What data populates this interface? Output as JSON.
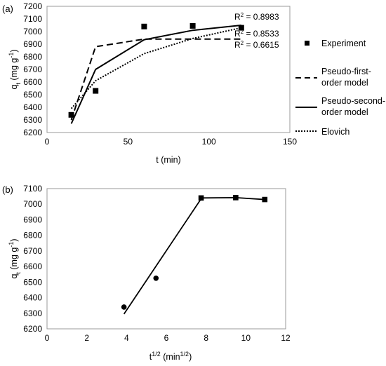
{
  "chart_data": [
    {
      "panel_label": "(a)",
      "type": "scatter",
      "xlabel": "t (min)",
      "ylabel": "q",
      "ylabel_sub": "t",
      "ylabel_unit_pre": " (mg g",
      "ylabel_unit_sup": "-1",
      "ylabel_unit_post": ")",
      "xlim": [
        0,
        150
      ],
      "ylim": [
        6200,
        7200
      ],
      "xticks": [
        0,
        50,
        100,
        150
      ],
      "yticks": [
        6200,
        6300,
        6400,
        6500,
        6600,
        6700,
        6800,
        6900,
        7000,
        7100,
        7200
      ],
      "grid": false,
      "legend": "right",
      "series": [
        {
          "name": "Experiment",
          "style": "square-markers",
          "x": [
            15,
            30,
            60,
            90,
            120
          ],
          "y": [
            6340,
            6530,
            7040,
            7045,
            7030
          ]
        },
        {
          "name": "Pseudo-first-order model",
          "style": "dashed",
          "x": [
            15,
            30,
            60,
            90,
            120
          ],
          "y": [
            6300,
            6880,
            6940,
            6940,
            6940
          ]
        },
        {
          "name": "Pseudo-second-order model",
          "style": "solid",
          "x": [
            15,
            30,
            60,
            90,
            120
          ],
          "y": [
            6270,
            6700,
            6935,
            7010,
            7050
          ]
        },
        {
          "name": "Elovich",
          "style": "dotted",
          "x": [
            15,
            30,
            60,
            90,
            120
          ],
          "y": [
            6390,
            6610,
            6825,
            6945,
            7030
          ]
        }
      ],
      "annotations": [
        {
          "prefix": "R",
          "sup": "2",
          "text": " = 0.8983"
        },
        {
          "prefix": "R",
          "sup": "2",
          "text": " = 0.8533"
        },
        {
          "prefix": "R",
          "sup": "2",
          "text": " = 0.6615"
        }
      ]
    },
    {
      "panel_label": "(b)",
      "type": "scatter",
      "xlabel_pre": "t",
      "xlabel_sup": "1/2",
      "xlabel_mid": " (min",
      "xlabel_sup2": "1/2",
      "xlabel_post": ")",
      "ylabel": "q",
      "ylabel_sub": "t",
      "ylabel_unit_pre": " (mg g",
      "ylabel_unit_sup": "-1",
      "ylabel_unit_post": ")",
      "xlim": [
        0,
        12
      ],
      "ylim": [
        6200,
        7100
      ],
      "xticks": [
        0,
        2,
        4,
        6,
        8,
        10,
        12
      ],
      "yticks": [
        6200,
        6300,
        6400,
        6500,
        6600,
        6700,
        6800,
        6900,
        7000,
        7100
      ],
      "grid": false,
      "series": [
        {
          "style": "circle-markers",
          "x": [
            3.87,
            5.48
          ],
          "y": [
            6340,
            6525
          ]
        },
        {
          "style": "solid-line",
          "x": [
            3.87,
            7.75
          ],
          "y": [
            6295,
            7035
          ]
        },
        {
          "style": "square-markers-line",
          "x": [
            7.75,
            9.49,
            10.95
          ],
          "y": [
            7040,
            7042,
            7030
          ]
        }
      ]
    }
  ]
}
